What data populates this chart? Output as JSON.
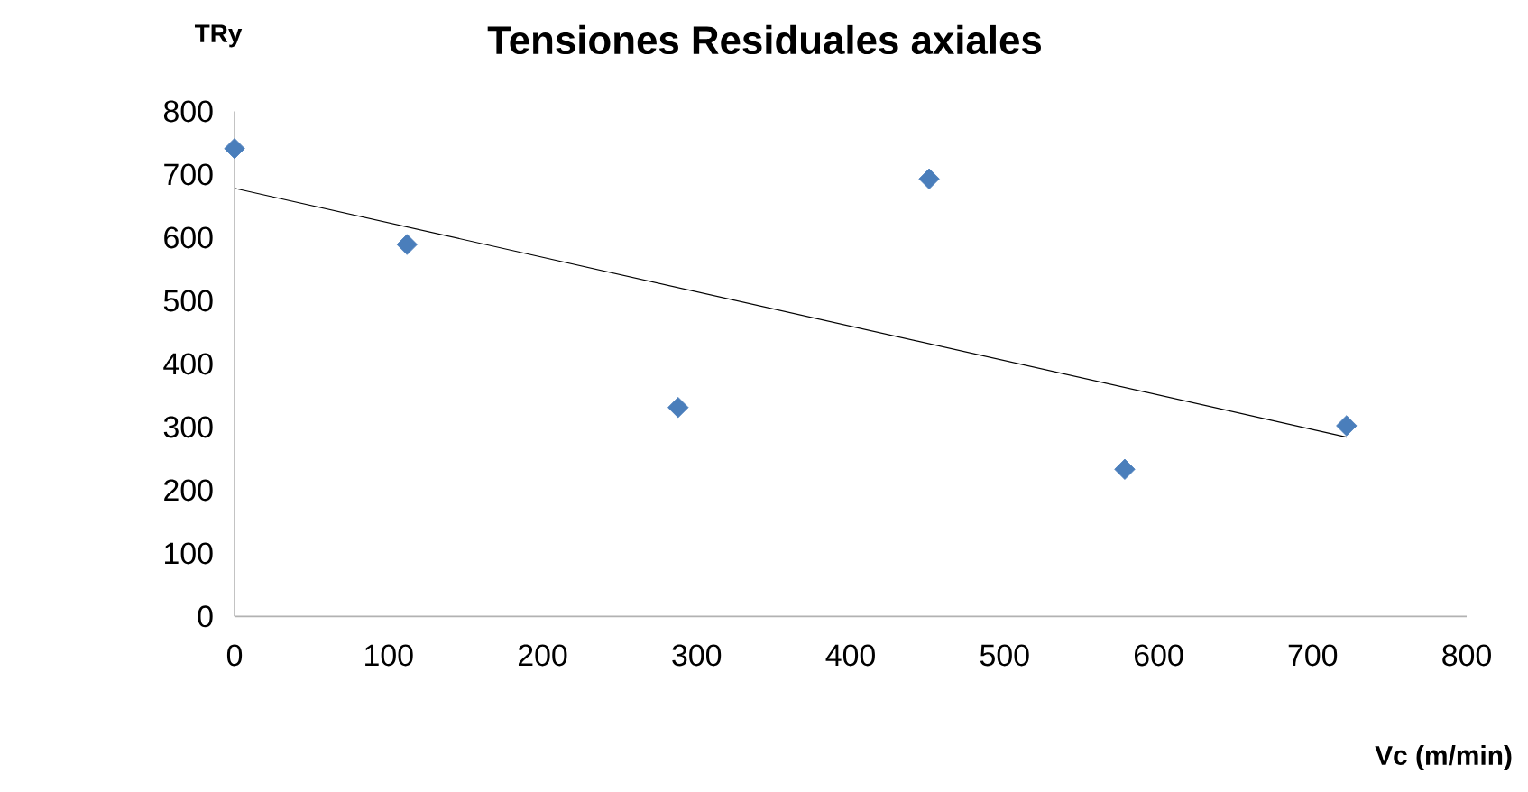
{
  "chart_data": {
    "type": "scatter",
    "title": "Tensiones  Residuales axiales",
    "xlabel": "Vc (m/min)",
    "ylabel": "TRy",
    "x": [
      0,
      112,
      288,
      451,
      578,
      722
    ],
    "series": [
      {
        "color": "#4a7ebb",
        "marker": "diamond",
        "values": [
          741,
          589,
          331,
          693,
          233,
          302
        ]
      },
      {
        "type": "line",
        "color": "#000000",
        "marker": "none",
        "line_style": "solid",
        "x": [
          0,
          722
        ],
        "values": [
          678,
          284
        ]
      }
    ],
    "xlim": [
      0,
      800
    ],
    "ylim": [
      0,
      800
    ],
    "xticks": [
      0,
      100,
      200,
      300,
      400,
      500,
      600,
      700,
      800
    ],
    "yticks": [
      0,
      100,
      200,
      300,
      400,
      500,
      600,
      700,
      800
    ],
    "grid": false
  }
}
